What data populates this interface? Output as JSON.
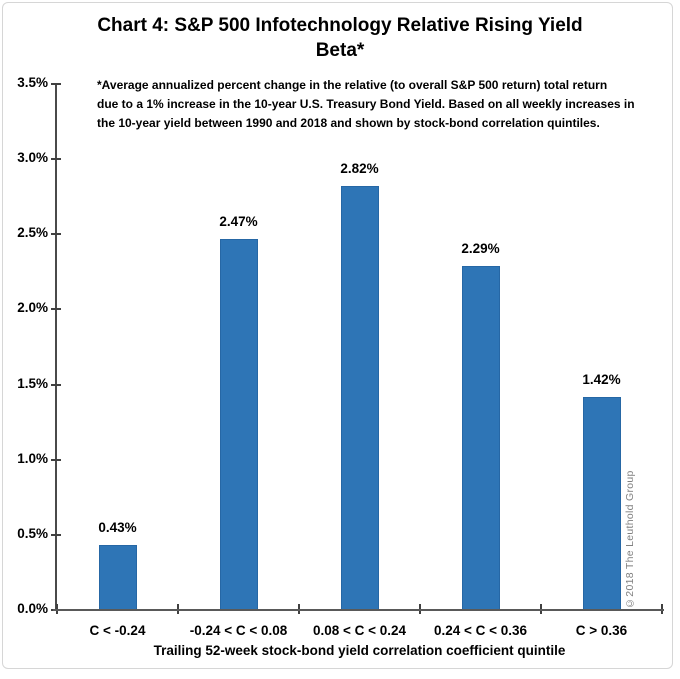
{
  "frame": {
    "background": "#ffffff",
    "border_color": "#d6d6d6"
  },
  "chart_data": {
    "type": "bar",
    "title_lines": [
      "Chart 4: S&P 500 Infotechnology Relative Rising Yield",
      "Beta*"
    ],
    "footnote_lines": [
      "*Average annualized percent change in the relative (to overall S&P 500 return) total return",
      "due to a 1% increase in the 10-year U.S. Treasury Bond Yield.  Based on all weekly increases in",
      "the 10-year yield between 1990 and 2018 and shown by stock-bond correlation quintiles."
    ],
    "categories": [
      "C < -0.24",
      "-0.24 < C < 0.08",
      "0.08 < C < 0.24",
      "0.24 < C < 0.36",
      "C > 0.36"
    ],
    "values": [
      0.43,
      2.47,
      2.82,
      2.29,
      1.42
    ],
    "value_labels": [
      "0.43%",
      "2.47%",
      "2.82%",
      "2.29%",
      "1.42%"
    ],
    "xlabel": "Trailing 52-week stock-bond yield correlation coefficient quintile",
    "ylabel": "",
    "ylim": [
      0,
      3.5
    ],
    "ytick_step": 0.5,
    "ytick_labels": [
      "0.0%",
      "0.5%",
      "1.0%",
      "1.5%",
      "2.0%",
      "2.5%",
      "3.0%",
      "3.5%"
    ],
    "grid": false,
    "legend": "none",
    "bar_color": "#2E75B6",
    "bar_border_color": "#2667A5",
    "axis_color": "#595959",
    "tick_color": "#404040",
    "text_color": "#000000"
  },
  "watermark": {
    "text": "©2018 The Leuthold Group",
    "color": "#808080"
  }
}
